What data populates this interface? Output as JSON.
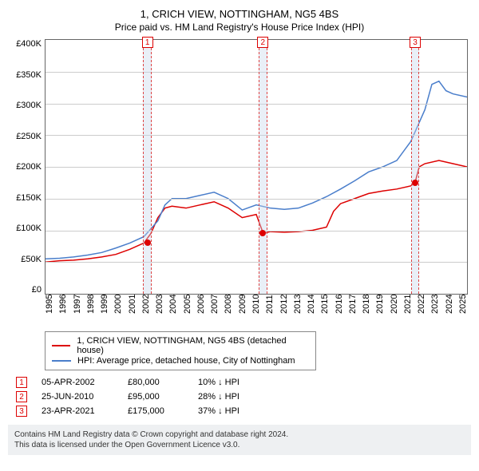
{
  "title": "1, CRICH VIEW, NOTTINGHAM, NG5 4BS",
  "subtitle": "Price paid vs. HM Land Registry's House Price Index (HPI)",
  "chart": {
    "type": "line",
    "background_color": "#ffffff",
    "grid_color": "#cccccc",
    "border_color": "#666666",
    "ylim": [
      0,
      400000
    ],
    "ytick_step": 50000,
    "y_labels": [
      "£400K",
      "£350K",
      "£300K",
      "£250K",
      "£200K",
      "£150K",
      "£100K",
      "£50K",
      "£0"
    ],
    "xlim": [
      1995,
      2025
    ],
    "x_labels": [
      "1995",
      "1996",
      "1997",
      "1998",
      "1999",
      "2000",
      "2001",
      "2002",
      "2003",
      "2004",
      "2005",
      "2006",
      "2007",
      "2008",
      "2009",
      "2010",
      "2011",
      "2012",
      "2013",
      "2014",
      "2015",
      "2016",
      "2017",
      "2018",
      "2019",
      "2020",
      "2021",
      "2022",
      "2023",
      "2024",
      "2025"
    ],
    "label_fontsize": 11,
    "series": [
      {
        "name": "property",
        "label": "1, CRICH VIEW, NOTTINGHAM, NG5 4BS (detached house)",
        "color": "#dd0000",
        "line_width": 1.5,
        "data": [
          [
            1995,
            50000
          ],
          [
            1996,
            52000
          ],
          [
            1997,
            53000
          ],
          [
            1998,
            55000
          ],
          [
            1999,
            58000
          ],
          [
            2000,
            62000
          ],
          [
            2001,
            70000
          ],
          [
            2002,
            80000
          ],
          [
            2002.5,
            95000
          ],
          [
            2003,
            120000
          ],
          [
            2003.5,
            135000
          ],
          [
            2004,
            138000
          ],
          [
            2005,
            135000
          ],
          [
            2006,
            140000
          ],
          [
            2007,
            145000
          ],
          [
            2008,
            135000
          ],
          [
            2009,
            120000
          ],
          [
            2010,
            125000
          ],
          [
            2010.5,
            95000
          ],
          [
            2011,
            98000
          ],
          [
            2012,
            97000
          ],
          [
            2013,
            98000
          ],
          [
            2014,
            100000
          ],
          [
            2015,
            105000
          ],
          [
            2015.5,
            130000
          ],
          [
            2016,
            142000
          ],
          [
            2017,
            150000
          ],
          [
            2018,
            158000
          ],
          [
            2019,
            162000
          ],
          [
            2020,
            165000
          ],
          [
            2021,
            170000
          ],
          [
            2021.3,
            175000
          ],
          [
            2021.6,
            200000
          ],
          [
            2022,
            205000
          ],
          [
            2023,
            210000
          ],
          [
            2024,
            205000
          ],
          [
            2025,
            200000
          ]
        ]
      },
      {
        "name": "hpi",
        "label": "HPI: Average price, detached house, City of Nottingham",
        "color": "#4a7ecb",
        "line_width": 1.5,
        "data": [
          [
            1995,
            55000
          ],
          [
            1996,
            56000
          ],
          [
            1997,
            58000
          ],
          [
            1998,
            61000
          ],
          [
            1999,
            65000
          ],
          [
            2000,
            72000
          ],
          [
            2001,
            80000
          ],
          [
            2002,
            90000
          ],
          [
            2003,
            115000
          ],
          [
            2003.5,
            140000
          ],
          [
            2004,
            150000
          ],
          [
            2005,
            150000
          ],
          [
            2006,
            155000
          ],
          [
            2007,
            160000
          ],
          [
            2008,
            150000
          ],
          [
            2009,
            132000
          ],
          [
            2010,
            140000
          ],
          [
            2011,
            135000
          ],
          [
            2012,
            133000
          ],
          [
            2013,
            135000
          ],
          [
            2014,
            143000
          ],
          [
            2015,
            153000
          ],
          [
            2016,
            165000
          ],
          [
            2017,
            178000
          ],
          [
            2018,
            192000
          ],
          [
            2019,
            200000
          ],
          [
            2020,
            210000
          ],
          [
            2021,
            240000
          ],
          [
            2022,
            290000
          ],
          [
            2022.5,
            330000
          ],
          [
            2023,
            335000
          ],
          [
            2023.5,
            320000
          ],
          [
            2024,
            315000
          ],
          [
            2025,
            310000
          ]
        ]
      }
    ],
    "markers": [
      {
        "id": "1",
        "x": 2002.25,
        "y": 80000,
        "band_width": 0.6
      },
      {
        "id": "2",
        "x": 2010.47,
        "y": 95000,
        "band_width": 0.6
      },
      {
        "id": "3",
        "x": 2021.31,
        "y": 175000,
        "band_width": 0.6
      }
    ],
    "marker_band_color": "rgba(200,215,235,0.4)",
    "marker_border_color": "#dd4444"
  },
  "legend": {
    "rows": [
      {
        "color": "#dd0000",
        "label": "1, CRICH VIEW, NOTTINGHAM, NG5 4BS (detached house)"
      },
      {
        "color": "#4a7ecb",
        "label": "HPI: Average price, detached house, City of Nottingham"
      }
    ]
  },
  "events": [
    {
      "id": "1",
      "date": "05-APR-2002",
      "price": "£80,000",
      "hpi": "10% ↓ HPI"
    },
    {
      "id": "2",
      "date": "25-JUN-2010",
      "price": "£95,000",
      "hpi": "28% ↓ HPI"
    },
    {
      "id": "3",
      "date": "23-APR-2021",
      "price": "£175,000",
      "hpi": "37% ↓ HPI"
    }
  ],
  "footer": {
    "line1": "Contains HM Land Registry data © Crown copyright and database right 2024.",
    "line2": "This data is licensed under the Open Government Licence v3.0."
  }
}
